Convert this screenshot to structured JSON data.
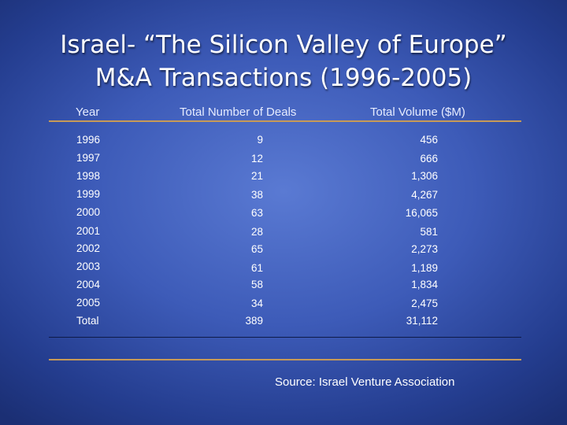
{
  "title": {
    "line1": "Israel- “The Silicon Valley of Europe”",
    "line2": "M&A Transactions (1996-2005)"
  },
  "table": {
    "headers": {
      "year": "Year",
      "deals": "Total Number of Deals",
      "volume": "Total Volume ($M)"
    },
    "rows": [
      {
        "year": "1996",
        "deals": "9",
        "volume": "456"
      },
      {
        "year": "1997",
        "deals": "12",
        "volume": "666"
      },
      {
        "year": "1998",
        "deals": "21",
        "volume": "1,306"
      },
      {
        "year": "1999",
        "deals": "38",
        "volume": "4,267"
      },
      {
        "year": "2000",
        "deals": "63",
        "volume": "16,065"
      },
      {
        "year": "2001",
        "deals": "28",
        "volume": "581"
      },
      {
        "year": "2002",
        "deals": "65",
        "volume": "2,273"
      },
      {
        "year": "2003",
        "deals": "61",
        "volume": "1,189"
      },
      {
        "year": "2004",
        "deals": "58",
        "volume": "1,834"
      },
      {
        "year": "2005",
        "deals": "34",
        "volume": "2,475"
      },
      {
        "year": "Total",
        "deals": "389",
        "volume": "31,112"
      }
    ]
  },
  "source": "Source: Israel Venture Association",
  "colors": {
    "background": "#3d5bb8",
    "rule": "#c79a57",
    "text": "#ffffff"
  }
}
